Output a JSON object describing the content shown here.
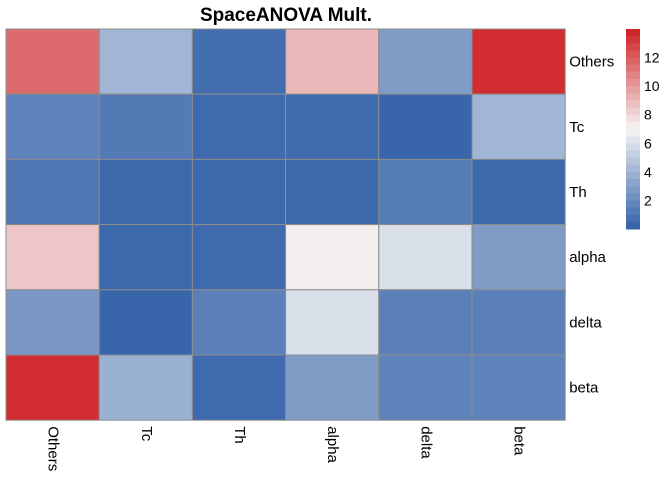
{
  "chart_data": {
    "type": "heatmap",
    "title": "SpaceANOVA Mult.",
    "rows": [
      "Others",
      "Tc",
      "Th",
      "alpha",
      "delta",
      "beta"
    ],
    "columns": [
      "Others",
      "Tc",
      "Th",
      "alpha",
      "delta",
      "beta"
    ],
    "values": [
      [
        11.5,
        4.0,
        0.6,
        9.0,
        2.8,
        13.5
      ],
      [
        1.6,
        1.2,
        0.5,
        0.5,
        0.3,
        4.0
      ],
      [
        1.1,
        0.4,
        0.4,
        0.4,
        1.3,
        0.4
      ],
      [
        8.5,
        0.4,
        0.5,
        7.2,
        6.0,
        2.8
      ],
      [
        2.6,
        0.3,
        1.5,
        6.0,
        1.5,
        1.5
      ],
      [
        13.5,
        3.8,
        0.5,
        2.8,
        1.6,
        1.6
      ]
    ],
    "color_scale": {
      "low": "#3160a8",
      "mid": "#f5f5f5",
      "high": "#cf1f22",
      "range": [
        0,
        14
      ],
      "midpoint": 7
    },
    "legend": {
      "position": "right",
      "ticks": [
        2,
        4,
        6,
        8,
        10,
        12
      ]
    },
    "row_labels_position": "right",
    "column_labels_rotation": "vertical"
  }
}
